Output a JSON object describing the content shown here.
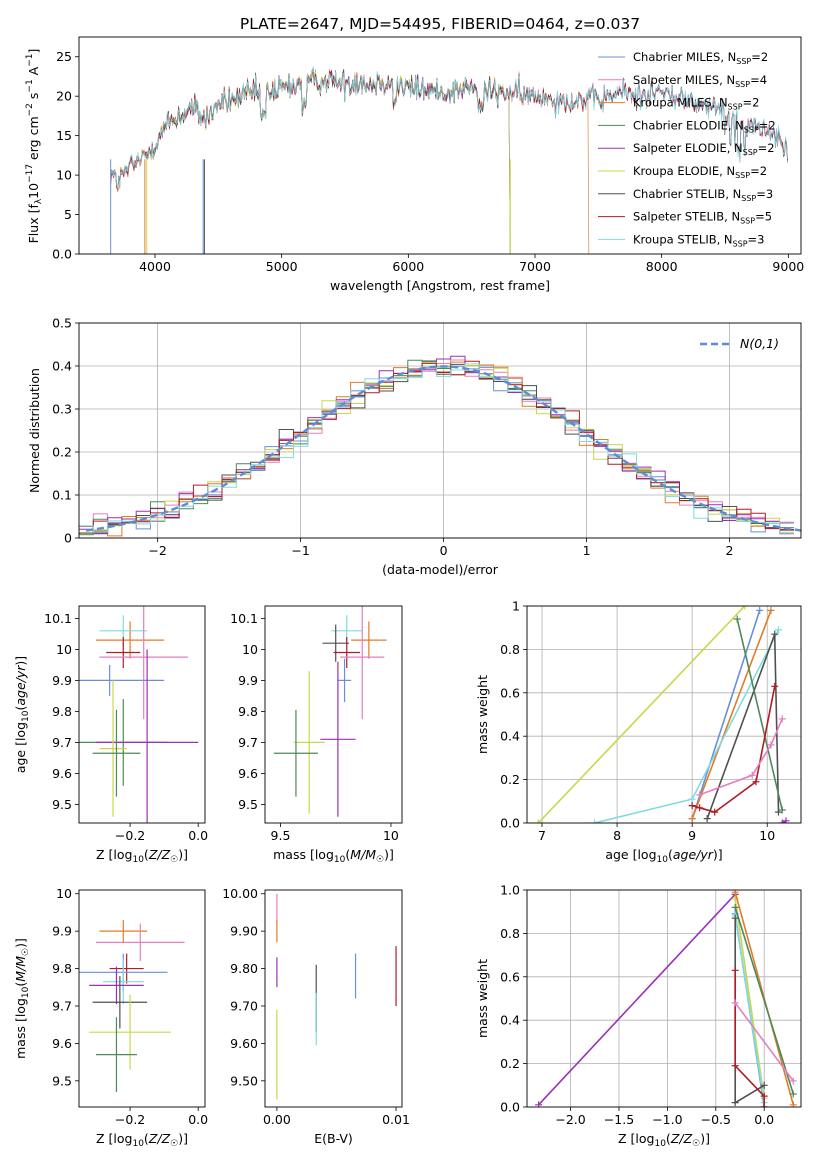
{
  "figure": {
    "title": "PLATE=2647, MJD=54495, FIBERID=0464, z=0.037"
  },
  "chart_data": [
    {
      "id": "spectrum",
      "type": "line",
      "xlabel": "wavelength [Angstrom, rest frame]",
      "ylabel": "Flux [f_λ10^-17 erg cm^-2 s^-1 A^-1]",
      "xlim": [
        3400,
        9100
      ],
      "ylim": [
        0,
        27.5
      ],
      "xticks": [
        4000,
        5000,
        6000,
        7000,
        8000,
        9000
      ],
      "yticks": [
        0,
        5,
        10,
        15,
        20,
        25
      ],
      "grid": false,
      "legend_position": "top-right",
      "envelope": {
        "x": [
          3650,
          3700,
          3800,
          3900,
          4000,
          4100,
          4200,
          4300,
          4400,
          4500,
          4600,
          4700,
          4800,
          4900,
          5000,
          5100,
          5200,
          5300,
          5400,
          5500,
          5600,
          5700,
          5800,
          5900,
          6000,
          6100,
          6200,
          6300,
          6400,
          6500,
          6600,
          6700,
          6800,
          6900,
          7000,
          7100,
          7200,
          7300,
          7400,
          7500,
          7600,
          7700,
          7800,
          7900,
          8000,
          8100,
          8200,
          8300,
          8400,
          8500,
          8600,
          8700,
          8800,
          8900,
          9000
        ],
        "y": [
          10.5,
          9.0,
          11.0,
          12.0,
          14.0,
          16.5,
          17.5,
          18.5,
          17.0,
          19.0,
          19.5,
          20.0,
          20.5,
          20.5,
          21.0,
          21.5,
          21.5,
          22.0,
          22.0,
          21.5,
          22.0,
          21.5,
          22.0,
          21.5,
          21.0,
          21.0,
          20.5,
          20.5,
          21.0,
          21.0,
          20.5,
          20.5,
          20.5,
          20.0,
          20.0,
          20.0,
          19.5,
          19.5,
          19.5,
          19.5,
          20.0,
          20.5,
          20.0,
          20.5,
          20.5,
          20.0,
          19.5,
          19.0,
          18.5,
          18.0,
          17.5,
          16.5,
          16.0,
          15.0,
          14.0
        ]
      },
      "series": [
        {
          "name": "Chabrier MILES, N_SSP=2",
          "color": "#6a8fd8",
          "cutoff": [
            3650,
            9000
          ]
        },
        {
          "name": "Salpeter MILES, N_SSP=4",
          "color": "#e57fbf",
          "cutoff": [
            3650,
            9000
          ]
        },
        {
          "name": "Kroupa MILES, N_SSP=2",
          "color": "#e07b2a",
          "cutoff": [
            3650,
            7420
          ]
        },
        {
          "name": "Chabrier ELODIE, N_SSP=2",
          "color": "#4e8a58",
          "cutoff": [
            3900,
            6800
          ]
        },
        {
          "name": "Salpeter ELODIE, N_SSP=2",
          "color": "#9a30b8",
          "cutoff": [
            3900,
            6800
          ]
        },
        {
          "name": "Kroupa ELODIE, N_SSP=2",
          "color": "#c8d84a",
          "cutoff": [
            3900,
            6800
          ]
        },
        {
          "name": "Chabrier STELIB, N_SSP=3",
          "color": "#505050",
          "cutoff": [
            3650,
            9000
          ]
        },
        {
          "name": "Salpeter STELIB, N_SSP=5",
          "color": "#b01c28",
          "cutoff": [
            3650,
            9000
          ]
        },
        {
          "name": "Kroupa STELIB, N_SSP=3",
          "color": "#7fdbe0",
          "cutoff": [
            3650,
            9000
          ]
        }
      ]
    },
    {
      "id": "residuals",
      "type": "step",
      "xlabel": "(data-model)/error",
      "ylabel": "Normed distribution",
      "xlim": [
        -2.55,
        2.5
      ],
      "ylim": [
        0,
        0.5
      ],
      "xticks": [
        -2,
        -1,
        0,
        1,
        2
      ],
      "yticks": [
        0.0,
        0.1,
        0.2,
        0.3,
        0.4,
        0.5
      ],
      "grid": true,
      "legend_position": "top-right",
      "legend_label": "N(0,1)",
      "legend_color": "#5b8dd6"
    },
    {
      "id": "age-vs-Z",
      "type": "errorbar",
      "xlabel": "Z [log10(Z/Z☉)]",
      "ylabel": "age  [log10(age/yr)]",
      "xlim": [
        -0.35,
        0.02
      ],
      "ylim": [
        9.44,
        10.14
      ],
      "xticks": [
        -0.2,
        0.0
      ],
      "yticks": [
        9.5,
        9.6,
        9.7,
        9.8,
        9.9,
        10.0,
        10.1
      ],
      "points": [
        {
          "x": -0.2,
          "y": 10.03,
          "xerr": 0.1,
          "yerr": 0.06,
          "color": "#e07b2a"
        },
        {
          "x": -0.22,
          "y": 10.06,
          "xerr": 0.07,
          "yerr": 0.05,
          "color": "#7fdbe0"
        },
        {
          "x": -0.22,
          "y": 9.99,
          "xerr": 0.05,
          "yerr": 0.05,
          "color": "#b01c28"
        },
        {
          "x": -0.16,
          "y": 9.975,
          "xerr": 0.13,
          "yerr": 0.2,
          "color": "#e57fbf"
        },
        {
          "x": -0.26,
          "y": 9.9,
          "xerr": 0.16,
          "yerr": 0.05,
          "color": "#6a8fd8"
        },
        {
          "x": -0.22,
          "y": 9.7,
          "xerr": 0.13,
          "yerr": 0.14,
          "color": "#4e8a58"
        },
        {
          "x": -0.15,
          "y": 9.7,
          "xerr": 0.15,
          "yerr": 0.3,
          "color": "#9a30b8"
        },
        {
          "x": -0.25,
          "y": 9.68,
          "xerr": 0.04,
          "yerr": 0.22,
          "color": "#c8d84a"
        },
        {
          "x": -0.24,
          "y": 9.665,
          "xerr": 0.07,
          "yerr": 0.14,
          "color": "#4e8a58"
        }
      ]
    },
    {
      "id": "age-vs-mass",
      "type": "errorbar",
      "xlabel": "mass [log10(M/M☉)]",
      "ylabel": "",
      "xlim": [
        9.43,
        10.05
      ],
      "ylim": [
        9.44,
        10.14
      ],
      "xticks": [
        9.5,
        10.0
      ],
      "yticks": [
        9.5,
        9.6,
        9.7,
        9.8,
        9.9,
        10.0,
        10.1
      ],
      "points": [
        {
          "x": 9.8,
          "y": 10.06,
          "xerr": 0.07,
          "yerr": 0.05,
          "color": "#7fdbe0"
        },
        {
          "x": 9.9,
          "y": 10.03,
          "xerr": 0.08,
          "yerr": 0.06,
          "color": "#e07b2a"
        },
        {
          "x": 9.75,
          "y": 10.02,
          "xerr": 0.06,
          "yerr": 0.06,
          "color": "#505050"
        },
        {
          "x": 9.8,
          "y": 9.99,
          "xerr": 0.06,
          "yerr": 0.05,
          "color": "#b01c28"
        },
        {
          "x": 9.87,
          "y": 9.975,
          "xerr": 0.1,
          "yerr": 0.2,
          "color": "#e57fbf"
        },
        {
          "x": 9.79,
          "y": 9.9,
          "xerr": 0.03,
          "yerr": 0.07,
          "color": "#6a8fd8"
        },
        {
          "x": 9.76,
          "y": 9.71,
          "xerr": 0.08,
          "yerr": 0.25,
          "color": "#9a30b8"
        },
        {
          "x": 9.63,
          "y": 9.7,
          "xerr": 0.07,
          "yerr": 0.23,
          "color": "#c8d84a"
        },
        {
          "x": 9.57,
          "y": 9.665,
          "xerr": 0.1,
          "yerr": 0.14,
          "color": "#4e8a58"
        }
      ]
    },
    {
      "id": "weight-vs-age",
      "type": "line",
      "xlabel": "age  [log10(age/yr)]",
      "ylabel": "mass weight",
      "xlim": [
        6.8,
        10.45
      ],
      "ylim": [
        0,
        1.0
      ],
      "xticks": [
        7,
        8,
        9,
        10
      ],
      "yticks": [
        0.0,
        0.2,
        0.4,
        0.6,
        0.8,
        1.0
      ],
      "grid": true,
      "series": [
        {
          "color": "#c8d84a",
          "x": [
            6.95,
            9.7
          ],
          "y": [
            0.0,
            1.0
          ]
        },
        {
          "color": "#6a8fd8",
          "x": [
            9.0,
            9.9
          ],
          "y": [
            0.02,
            0.98
          ]
        },
        {
          "color": "#e07b2a",
          "x": [
            9.0,
            10.05
          ],
          "y": [
            0.02,
            0.98
          ]
        },
        {
          "color": "#7fdbe0",
          "x": [
            7.7,
            9.0,
            10.15
          ],
          "y": [
            0.0,
            0.11,
            0.89
          ]
        },
        {
          "color": "#505050",
          "x": [
            9.2,
            10.1,
            10.15
          ],
          "y": [
            0.02,
            0.87,
            0.05
          ]
        },
        {
          "color": "#4e8a58",
          "x": [
            9.6,
            10.2
          ],
          "y": [
            0.94,
            0.06
          ]
        },
        {
          "color": "#b01c28",
          "x": [
            9.0,
            9.1,
            9.3,
            9.85,
            10.1
          ],
          "y": [
            0.08,
            0.07,
            0.05,
            0.19,
            0.63
          ]
        },
        {
          "color": "#e57fbf",
          "x": [
            9.1,
            9.8,
            10.05,
            10.2
          ],
          "y": [
            0.13,
            0.22,
            0.36,
            0.48
          ]
        },
        {
          "color": "#9a30b8",
          "x": [
            10.2,
            10.25
          ],
          "y": [
            0.0,
            0.01
          ]
        }
      ]
    },
    {
      "id": "mass-vs-Z",
      "type": "errorbar",
      "xlabel": "Z [log10(Z/Z☉)]",
      "ylabel": "mass [log10(M/M☉)]",
      "xlim": [
        -0.35,
        0.02
      ],
      "ylim": [
        9.43,
        10.01
      ],
      "xticks": [
        -0.2,
        0.0
      ],
      "yticks": [
        9.5,
        9.6,
        9.7,
        9.8,
        9.9,
        10.0
      ],
      "points": [
        {
          "x": -0.22,
          "y": 9.9,
          "xerr": 0.07,
          "yerr": 0.03,
          "color": "#e07b2a"
        },
        {
          "x": -0.17,
          "y": 9.87,
          "xerr": 0.13,
          "yerr": 0.05,
          "color": "#e57fbf"
        },
        {
          "x": -0.21,
          "y": 9.8,
          "xerr": 0.05,
          "yerr": 0.04,
          "color": "#b01c28"
        },
        {
          "x": -0.22,
          "y": 9.79,
          "xerr": 0.13,
          "yerr": 0.05,
          "color": "#6a8fd8"
        },
        {
          "x": -0.22,
          "y": 9.765,
          "xerr": 0.06,
          "yerr": 0.06,
          "color": "#7fdbe0"
        },
        {
          "x": -0.24,
          "y": 9.755,
          "xerr": 0.08,
          "yerr": 0.05,
          "color": "#9a30b8"
        },
        {
          "x": -0.23,
          "y": 9.71,
          "xerr": 0.08,
          "yerr": 0.07,
          "color": "#505050"
        },
        {
          "x": -0.2,
          "y": 9.63,
          "xerr": 0.12,
          "yerr": 0.1,
          "color": "#c8d84a"
        },
        {
          "x": -0.24,
          "y": 9.57,
          "xerr": 0.06,
          "yerr": 0.1,
          "color": "#4e8a58"
        }
      ]
    },
    {
      "id": "mass-vs-EBV",
      "type": "errorbar",
      "xlabel": "E(B-V)",
      "ylabel": "",
      "xlim": [
        -0.001,
        0.0105
      ],
      "ylim": [
        9.43,
        10.01
      ],
      "xticks": [
        0.0,
        0.01
      ],
      "yticks": [
        9.5,
        9.6,
        9.7,
        9.8,
        9.9,
        10.0
      ],
      "points": [
        {
          "x": 0.0,
          "y": 9.96,
          "xerr": 0,
          "yerr": 0.04,
          "color": "#e57fbf"
        },
        {
          "x": 0.0,
          "y": 9.9,
          "xerr": 0,
          "yerr": 0.03,
          "color": "#e07b2a"
        },
        {
          "x": 0.0,
          "y": 9.79,
          "xerr": 0,
          "yerr": 0.04,
          "color": "#9a30b8"
        },
        {
          "x": 0.0,
          "y": 9.57,
          "xerr": 0,
          "yerr": 0.12,
          "color": "#c8d84a"
        },
        {
          "x": 0.0033,
          "y": 9.72,
          "xerr": 0,
          "yerr": 0.09,
          "color": "#505050"
        },
        {
          "x": 0.0033,
          "y": 9.665,
          "xerr": 0,
          "yerr": 0.07,
          "color": "#7fdbe0"
        },
        {
          "x": 0.0066,
          "y": 9.78,
          "xerr": 0,
          "yerr": 0.06,
          "color": "#6a8fd8"
        },
        {
          "x": 0.01,
          "y": 9.78,
          "xerr": 0,
          "yerr": 0.08,
          "color": "#b01c28"
        }
      ]
    },
    {
      "id": "weight-vs-Z",
      "type": "line",
      "xlabel": "Z [log10(Z/Z☉)]",
      "ylabel": "mass weight",
      "xlim": [
        -2.45,
        0.38
      ],
      "ylim": [
        0,
        1.0
      ],
      "xticks": [
        -2.0,
        -1.5,
        -1.0,
        -0.5,
        0.0
      ],
      "yticks": [
        0.0,
        0.2,
        0.4,
        0.6,
        0.8,
        1.0
      ],
      "grid": true,
      "series": [
        {
          "color": "#9a30b8",
          "x": [
            -2.33,
            -0.3
          ],
          "y": [
            0.01,
            0.98
          ]
        },
        {
          "color": "#c8d84a",
          "x": [
            -0.3,
            0.0
          ],
          "y": [
            0.96,
            0.04
          ]
        },
        {
          "color": "#e07b2a",
          "x": [
            -0.3,
            0.3
          ],
          "y": [
            0.99,
            0.01
          ]
        },
        {
          "color": "#6a8fd8",
          "x": [
            -0.3,
            0.0
          ],
          "y": [
            0.89,
            0.0
          ]
        },
        {
          "color": "#7fdbe0",
          "x": [
            -0.3,
            0.0
          ],
          "y": [
            0.88,
            0.02
          ]
        },
        {
          "color": "#4e8a58",
          "x": [
            -0.3,
            0.3
          ],
          "y": [
            0.92,
            0.06
          ]
        },
        {
          "color": "#505050",
          "x": [
            -0.3,
            -0.3,
            0.0
          ],
          "y": [
            0.87,
            0.02,
            0.1
          ]
        },
        {
          "color": "#b01c28",
          "x": [
            -0.3,
            -0.3,
            0.0,
            0.0
          ],
          "y": [
            0.63,
            0.19,
            0.05,
            0.0
          ]
        },
        {
          "color": "#e57fbf",
          "x": [
            -0.3,
            0.3
          ],
          "y": [
            0.48,
            0.12
          ]
        }
      ]
    }
  ]
}
